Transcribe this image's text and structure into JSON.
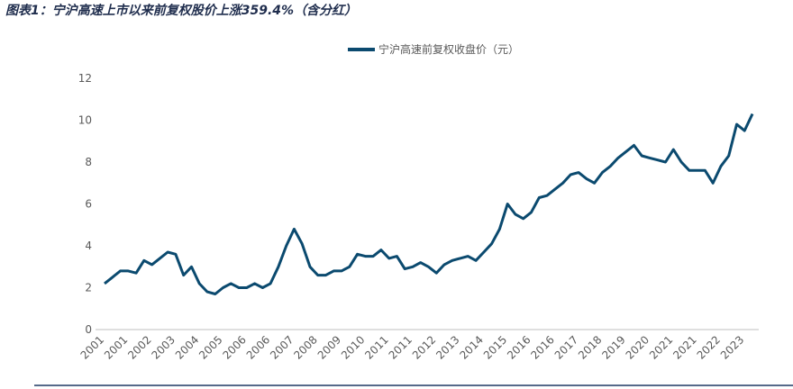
{
  "chart_data": {
    "type": "line",
    "title": "图表1：宁沪高速上市以来前复权股价上涨359.4%（含分红）",
    "categories": [
      "2001",
      null,
      null,
      "2001",
      null,
      null,
      "2002",
      null,
      null,
      "2003",
      null,
      null,
      "2004",
      null,
      null,
      "2005",
      null,
      null,
      "2006",
      null,
      null,
      "2006",
      null,
      null,
      "2007",
      null,
      null,
      "2008",
      null,
      null,
      "2009",
      null,
      null,
      "2010",
      null,
      null,
      "2011",
      null,
      null,
      "2011",
      null,
      null,
      "2012",
      null,
      null,
      "2013",
      null,
      null,
      "2014",
      null,
      null,
      "2015",
      null,
      null,
      "2016",
      null,
      null,
      "2016",
      null,
      null,
      "2017",
      null,
      null,
      "2018",
      null,
      null,
      "2019",
      null,
      null,
      "2020",
      null,
      null,
      "2021",
      null,
      null,
      "2021",
      null,
      null,
      "2022",
      null,
      null,
      "2023",
      null
    ],
    "series": [
      {
        "name": "宁沪高速前复权收盘价（元）",
        "color": "#0b4a6f",
        "values": [
          2.2,
          2.5,
          2.8,
          2.8,
          2.7,
          3.3,
          3.1,
          3.4,
          3.7,
          3.6,
          2.6,
          3.0,
          2.2,
          1.8,
          1.7,
          2.0,
          2.2,
          2.0,
          2.0,
          2.2,
          2.0,
          2.2,
          3.0,
          4.0,
          4.8,
          4.1,
          3.0,
          2.6,
          2.6,
          2.8,
          2.8,
          3.0,
          3.6,
          3.5,
          3.5,
          3.8,
          3.4,
          3.5,
          2.9,
          3.0,
          3.2,
          3.0,
          2.7,
          3.1,
          3.3,
          3.4,
          3.5,
          3.3,
          3.7,
          4.1,
          4.8,
          6.0,
          5.5,
          5.3,
          5.6,
          6.3,
          6.4,
          6.7,
          7.0,
          7.4,
          7.5,
          7.2,
          7.0,
          7.5,
          7.8,
          8.2,
          8.5,
          8.8,
          8.3,
          8.2,
          8.1,
          8.0,
          8.6,
          8.0,
          7.6,
          7.6,
          7.6,
          7.0,
          7.8,
          8.3,
          9.8,
          9.5,
          10.3
        ]
      }
    ],
    "ylim": [
      0,
      12
    ],
    "yticks": [
      0,
      2,
      4,
      6,
      8,
      10,
      12
    ],
    "legend": "top"
  }
}
